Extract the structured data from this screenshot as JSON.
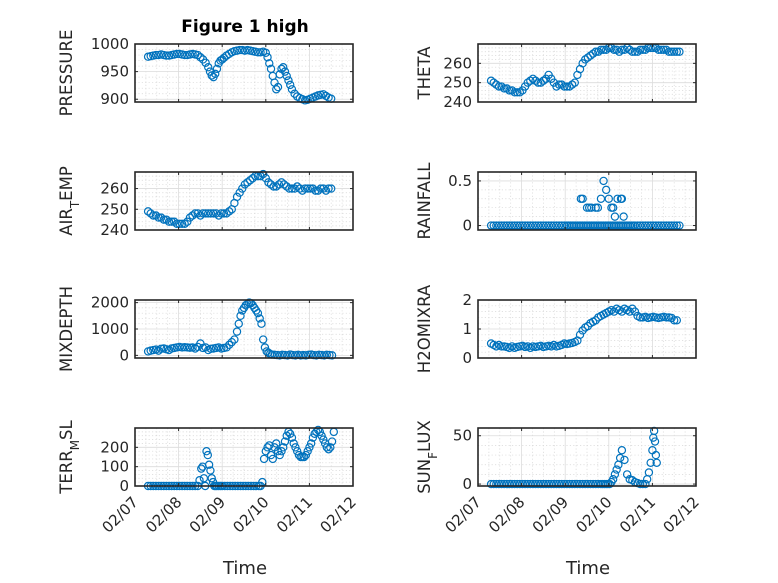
{
  "figure": {
    "title": "Figure 1 high",
    "xlabel": "Time",
    "date_ticks": [
      "02/07",
      "02/08",
      "02/09",
      "02/10",
      "02/11",
      "02/12"
    ],
    "marker_color": "#0072BD"
  },
  "chart_data": [
    {
      "type": "scatter",
      "ylabel": "PRESSURE",
      "title": "Figure 1 high",
      "xlim": [
        0,
        5
      ],
      "ylim": [
        895,
        1000
      ],
      "yticks": [
        900,
        950,
        1000
      ],
      "x": [
        0.3,
        0.36,
        0.42,
        0.48,
        0.54,
        0.6,
        0.66,
        0.72,
        0.78,
        0.84,
        0.9,
        0.96,
        1.02,
        1.08,
        1.14,
        1.2,
        1.26,
        1.32,
        1.38,
        1.44,
        1.5,
        1.56,
        1.62,
        1.68,
        1.72,
        1.76,
        1.8,
        1.84,
        1.88,
        1.92,
        1.96,
        2.0,
        2.04,
        2.1,
        2.16,
        2.22,
        2.28,
        2.34,
        2.4,
        2.46,
        2.52,
        2.58,
        2.64,
        2.7,
        2.76,
        2.82,
        2.88,
        2.94,
        3.0,
        3.04,
        3.08,
        3.12,
        3.16,
        3.2,
        3.24,
        3.28,
        3.32,
        3.36,
        3.4,
        3.44,
        3.48,
        3.52,
        3.56,
        3.6,
        3.66,
        3.72,
        3.78,
        3.84,
        3.9,
        3.96,
        4.02,
        4.08,
        4.14,
        4.2,
        4.26,
        4.32,
        4.38,
        4.44,
        4.5
      ],
      "values": [
        977,
        978,
        979,
        980,
        980,
        981,
        980,
        979,
        979,
        980,
        981,
        982,
        982,
        981,
        980,
        980,
        981,
        982,
        981,
        980,
        976,
        972,
        966,
        958,
        950,
        943,
        940,
        946,
        955,
        965,
        970,
        972,
        975,
        979,
        982,
        985,
        987,
        988,
        989,
        989,
        988,
        989,
        988,
        987,
        986,
        985,
        985,
        986,
        984,
        976,
        965,
        955,
        942,
        930,
        918,
        922,
        945,
        955,
        958,
        950,
        942,
        934,
        926,
        918,
        910,
        905,
        902,
        900,
        898,
        899,
        901,
        903,
        905,
        907,
        908,
        909,
        906,
        903,
        901
      ]
    },
    {
      "type": "scatter",
      "ylabel": "THETA",
      "xlim": [
        0,
        5
      ],
      "ylim": [
        240,
        270
      ],
      "yticks": [
        240,
        250,
        260
      ],
      "x": [
        0.3,
        0.36,
        0.42,
        0.48,
        0.54,
        0.6,
        0.66,
        0.72,
        0.78,
        0.84,
        0.9,
        0.96,
        1.02,
        1.08,
        1.14,
        1.2,
        1.26,
        1.32,
        1.38,
        1.44,
        1.5,
        1.56,
        1.62,
        1.68,
        1.74,
        1.8,
        1.86,
        1.92,
        1.98,
        2.04,
        2.1,
        2.16,
        2.22,
        2.28,
        2.34,
        2.4,
        2.46,
        2.52,
        2.58,
        2.64,
        2.7,
        2.76,
        2.82,
        2.88,
        2.94,
        3.0,
        3.06,
        3.12,
        3.18,
        3.24,
        3.3,
        3.36,
        3.42,
        3.48,
        3.54,
        3.6,
        3.66,
        3.72,
        3.78,
        3.84,
        3.9,
        3.96,
        4.02,
        4.08,
        4.14,
        4.2,
        4.26,
        4.32,
        4.38,
        4.44,
        4.5,
        4.56,
        4.62
      ],
      "values": [
        251,
        250,
        249,
        248,
        248,
        247,
        247,
        246,
        246,
        245,
        245,
        245,
        246,
        248,
        250,
        251,
        252,
        251,
        250,
        250,
        251,
        252,
        254,
        252,
        250,
        248,
        249,
        249,
        248,
        248,
        248,
        249,
        250,
        254,
        257,
        260,
        262,
        263,
        264,
        265,
        266,
        266,
        267,
        267,
        267,
        268,
        268,
        267,
        267,
        266,
        267,
        267,
        268,
        267,
        266,
        266,
        266,
        267,
        267,
        267,
        268,
        268,
        268,
        268,
        267,
        267,
        267,
        267,
        266,
        266,
        266,
        266,
        266
      ]
    },
    {
      "type": "scatter",
      "ylabel": "AIR_TEMP",
      "xlim": [
        0,
        5
      ],
      "ylim": [
        240,
        268
      ],
      "yticks": [
        240,
        250,
        260
      ],
      "x": [
        0.3,
        0.36,
        0.42,
        0.48,
        0.54,
        0.6,
        0.66,
        0.72,
        0.78,
        0.84,
        0.9,
        0.96,
        1.02,
        1.08,
        1.14,
        1.2,
        1.26,
        1.32,
        1.38,
        1.44,
        1.5,
        1.56,
        1.62,
        1.68,
        1.74,
        1.8,
        1.86,
        1.92,
        1.98,
        2.04,
        2.1,
        2.16,
        2.22,
        2.28,
        2.34,
        2.4,
        2.46,
        2.52,
        2.58,
        2.64,
        2.7,
        2.76,
        2.82,
        2.88,
        2.94,
        3.0,
        3.06,
        3.12,
        3.18,
        3.24,
        3.3,
        3.36,
        3.42,
        3.48,
        3.54,
        3.6,
        3.66,
        3.72,
        3.78,
        3.84,
        3.9,
        3.96,
        4.02,
        4.08,
        4.14,
        4.2,
        4.26,
        4.32,
        4.38,
        4.44,
        4.5
      ],
      "values": [
        249,
        248,
        247,
        247,
        246,
        246,
        245,
        245,
        244,
        244,
        244,
        243,
        243,
        243,
        243,
        244,
        246,
        247,
        248,
        248,
        247,
        248,
        248,
        248,
        248,
        248,
        248,
        247,
        248,
        248,
        248,
        249,
        250,
        253,
        256,
        258,
        260,
        262,
        263,
        264,
        265,
        266,
        266,
        266,
        267,
        265,
        263,
        262,
        261,
        261,
        262,
        263,
        262,
        261,
        260,
        260,
        260,
        261,
        260,
        259,
        260,
        260,
        260,
        260,
        259,
        259,
        260,
        260,
        259,
        260,
        260
      ]
    },
    {
      "type": "scatter",
      "ylabel": "RAINFALL",
      "xlim": [
        0,
        5
      ],
      "ylim": [
        -0.05,
        0.6
      ],
      "yticks": [
        0,
        0.5
      ],
      "x": [
        0.3,
        0.36,
        0.42,
        0.48,
        0.54,
        0.6,
        0.66,
        0.72,
        0.78,
        0.84,
        0.9,
        0.96,
        1.02,
        1.08,
        1.14,
        1.2,
        1.26,
        1.32,
        1.38,
        1.44,
        1.5,
        1.56,
        1.62,
        1.68,
        1.74,
        1.8,
        1.86,
        1.92,
        1.98,
        2.04,
        2.08,
        2.12,
        2.16,
        2.2,
        2.24,
        2.28,
        2.32,
        2.36,
        2.4,
        2.44,
        2.48,
        2.52,
        2.56,
        2.6,
        2.64,
        2.68,
        2.72,
        2.76,
        2.8,
        2.84,
        2.88,
        2.92,
        2.96,
        3.0,
        3.04,
        3.08,
        3.12,
        3.16,
        3.2,
        3.24,
        3.28,
        3.32,
        3.36,
        3.4,
        3.44,
        3.48,
        3.52,
        3.56,
        3.6,
        3.66,
        3.72,
        3.78,
        3.84,
        3.9,
        3.96,
        4.02,
        4.08,
        4.14,
        4.2,
        4.26,
        4.32,
        4.38,
        4.44,
        4.5,
        4.56,
        4.62,
        2.36,
        2.4,
        2.5,
        2.55,
        2.6,
        2.7,
        2.75,
        2.82,
        2.88,
        2.94,
        3.0,
        3.06,
        3.1,
        3.14,
        3.2,
        3.28,
        3.3,
        3.34
      ],
      "values": [
        0,
        0,
        0,
        0,
        0,
        0,
        0,
        0,
        0,
        0,
        0,
        0,
        0,
        0,
        0,
        0,
        0,
        0,
        0,
        0,
        0,
        0,
        0,
        0,
        0,
        0,
        0,
        0,
        0,
        0,
        0,
        0,
        0,
        0,
        0,
        0,
        0,
        0,
        0,
        0,
        0,
        0,
        0,
        0,
        0,
        0,
        0,
        0,
        0,
        0,
        0,
        0,
        0,
        0,
        0,
        0,
        0,
        0,
        0,
        0,
        0,
        0,
        0,
        0,
        0,
        0,
        0,
        0,
        0,
        0,
        0,
        0,
        0,
        0,
        0,
        0,
        0,
        0,
        0,
        0,
        0,
        0,
        0,
        0,
        0,
        0,
        0.3,
        0.3,
        0.2,
        0.2,
        0.2,
        0.2,
        0.2,
        0.3,
        0.5,
        0.4,
        0.3,
        0.2,
        0.2,
        0.1,
        0.3,
        0.3,
        0.3,
        0.1
      ]
    },
    {
      "type": "scatter",
      "ylabel": "MIXDEPTH",
      "xlim": [
        0,
        5
      ],
      "ylim": [
        -100,
        2100
      ],
      "yticks": [
        0,
        1000,
        2000
      ],
      "x": [
        0.3,
        0.36,
        0.42,
        0.48,
        0.54,
        0.6,
        0.66,
        0.72,
        0.78,
        0.84,
        0.9,
        0.96,
        1.02,
        1.08,
        1.14,
        1.2,
        1.26,
        1.32,
        1.38,
        1.44,
        1.5,
        1.56,
        1.62,
        1.68,
        1.74,
        1.8,
        1.86,
        1.92,
        1.98,
        2.04,
        2.1,
        2.16,
        2.22,
        2.28,
        2.34,
        2.38,
        2.42,
        2.46,
        2.5,
        2.54,
        2.58,
        2.62,
        2.66,
        2.7,
        2.74,
        2.78,
        2.82,
        2.86,
        2.9,
        2.94,
        2.98,
        3.02,
        3.06,
        3.1,
        3.14,
        3.2,
        3.26,
        3.32,
        3.38,
        3.44,
        3.5,
        3.56,
        3.62,
        3.68,
        3.74,
        3.8,
        3.86,
        3.92,
        3.98,
        4.04,
        4.1,
        4.16,
        4.22,
        4.28,
        4.34,
        4.4,
        4.46,
        4.52
      ],
      "values": [
        150,
        180,
        200,
        220,
        180,
        250,
        260,
        230,
        200,
        260,
        280,
        300,
        320,
        300,
        310,
        300,
        290,
        300,
        260,
        320,
        450,
        280,
        300,
        200,
        250,
        260,
        280,
        300,
        260,
        280,
        300,
        400,
        500,
        600,
        900,
        1200,
        1500,
        1700,
        1800,
        1900,
        1950,
        2000,
        1980,
        1900,
        1800,
        1700,
        1600,
        1400,
        1200,
        600,
        300,
        150,
        100,
        50,
        30,
        20,
        10,
        0,
        20,
        10,
        0,
        30,
        10,
        0,
        20,
        0,
        10,
        0,
        20,
        30,
        10,
        0,
        20,
        10,
        0,
        20,
        10,
        0
      ]
    },
    {
      "type": "scatter",
      "ylabel": "H2OMIXRA",
      "xlim": [
        0,
        5
      ],
      "ylim": [
        0,
        2
      ],
      "yticks": [
        0,
        1,
        2
      ],
      "x": [
        0.3,
        0.36,
        0.42,
        0.48,
        0.54,
        0.6,
        0.66,
        0.72,
        0.78,
        0.84,
        0.9,
        0.96,
        1.02,
        1.08,
        1.14,
        1.2,
        1.26,
        1.32,
        1.38,
        1.44,
        1.5,
        1.56,
        1.62,
        1.68,
        1.74,
        1.8,
        1.86,
        1.92,
        1.98,
        2.04,
        2.1,
        2.16,
        2.22,
        2.28,
        2.34,
        2.4,
        2.46,
        2.52,
        2.58,
        2.64,
        2.7,
        2.76,
        2.82,
        2.88,
        2.94,
        3.0,
        3.06,
        3.12,
        3.18,
        3.24,
        3.3,
        3.36,
        3.42,
        3.48,
        3.54,
        3.6,
        3.66,
        3.72,
        3.78,
        3.84,
        3.9,
        3.96,
        4.02,
        4.08,
        4.14,
        4.2,
        4.26,
        4.32,
        4.38,
        4.44,
        4.5,
        4.56
      ],
      "values": [
        0.5,
        0.45,
        0.4,
        0.45,
        0.4,
        0.4,
        0.38,
        0.35,
        0.4,
        0.35,
        0.38,
        0.4,
        0.42,
        0.38,
        0.4,
        0.35,
        0.4,
        0.38,
        0.4,
        0.42,
        0.38,
        0.4,
        0.42,
        0.4,
        0.45,
        0.4,
        0.42,
        0.45,
        0.5,
        0.48,
        0.5,
        0.52,
        0.55,
        0.6,
        0.8,
        0.95,
        1.05,
        1.1,
        1.2,
        1.25,
        1.3,
        1.4,
        1.45,
        1.5,
        1.55,
        1.6,
        1.65,
        1.6,
        1.7,
        1.65,
        1.6,
        1.7,
        1.65,
        1.6,
        1.7,
        1.6,
        1.45,
        1.4,
        1.4,
        1.42,
        1.38,
        1.4,
        1.42,
        1.4,
        1.38,
        1.4,
        1.42,
        1.4,
        1.4,
        1.38,
        1.3,
        1.3
      ]
    },
    {
      "type": "scatter",
      "ylabel": "TERR_MSL",
      "xlim": [
        0,
        5
      ],
      "ylim": [
        0,
        300
      ],
      "yticks": [
        0,
        100,
        200
      ],
      "x": [
        0.3,
        0.36,
        0.42,
        0.48,
        0.54,
        0.6,
        0.66,
        0.72,
        0.78,
        0.84,
        0.9,
        0.96,
        1.02,
        1.08,
        1.14,
        1.2,
        1.26,
        1.32,
        1.38,
        1.44,
        1.48,
        1.52,
        1.55,
        1.58,
        1.61,
        1.64,
        1.67,
        1.7,
        1.73,
        1.76,
        1.79,
        1.82,
        1.85,
        1.88,
        1.92,
        1.96,
        2.0,
        2.06,
        2.12,
        2.18,
        2.24,
        2.3,
        2.36,
        2.42,
        2.48,
        2.54,
        2.6,
        2.66,
        2.72,
        2.78,
        2.84,
        2.88,
        2.92,
        2.96,
        3.0,
        3.04,
        3.08,
        3.12,
        3.16,
        3.2,
        3.24,
        3.28,
        3.32,
        3.36,
        3.4,
        3.44,
        3.48,
        3.52,
        3.56,
        3.6,
        3.64,
        3.68,
        3.72,
        3.76,
        3.8,
        3.84,
        3.88,
        3.92,
        3.96,
        4.0,
        4.04,
        4.08,
        4.12,
        4.16,
        4.2,
        4.24,
        4.28,
        4.32,
        4.36,
        4.4,
        4.44,
        4.48,
        4.52,
        4.56
      ],
      "values": [
        0,
        0,
        0,
        0,
        0,
        0,
        0,
        0,
        0,
        0,
        0,
        0,
        0,
        0,
        0,
        0,
        0,
        0,
        0,
        0,
        30,
        90,
        100,
        40,
        0,
        180,
        160,
        110,
        80,
        40,
        20,
        0,
        0,
        0,
        0,
        0,
        0,
        0,
        0,
        0,
        0,
        0,
        0,
        0,
        0,
        0,
        0,
        0,
        0,
        0,
        0,
        0,
        20,
        140,
        180,
        200,
        210,
        160,
        140,
        200,
        220,
        180,
        160,
        180,
        200,
        230,
        260,
        280,
        270,
        250,
        220,
        200,
        180,
        160,
        150,
        150,
        150,
        160,
        180,
        200,
        220,
        250,
        270,
        280,
        290,
        280,
        260,
        240,
        220,
        200,
        190,
        200,
        230,
        280
      ]
    },
    {
      "type": "scatter",
      "ylabel": "SUN_FLUX",
      "xlim": [
        0,
        5
      ],
      "ylim": [
        -2,
        58
      ],
      "yticks": [
        0,
        50
      ],
      "x": [
        0.3,
        0.36,
        0.42,
        0.48,
        0.54,
        0.6,
        0.66,
        0.72,
        0.78,
        0.84,
        0.9,
        0.96,
        1.02,
        1.08,
        1.14,
        1.2,
        1.26,
        1.32,
        1.38,
        1.44,
        1.5,
        1.56,
        1.62,
        1.68,
        1.74,
        1.8,
        1.86,
        1.92,
        1.98,
        2.04,
        2.1,
        2.16,
        2.22,
        2.28,
        2.34,
        2.4,
        2.46,
        2.52,
        2.58,
        2.64,
        2.7,
        2.76,
        2.82,
        2.86,
        2.9,
        2.94,
        2.98,
        3.02,
        3.06,
        3.1,
        3.14,
        3.18,
        3.22,
        3.26,
        3.3,
        3.36,
        3.42,
        3.48,
        3.54,
        3.6,
        3.66,
        3.72,
        3.78,
        3.84,
        3.88,
        3.92,
        3.96,
        4.0,
        4.02,
        4.04,
        4.06,
        4.08,
        4.1
      ],
      "values": [
        0,
        0,
        0,
        0,
        0,
        0,
        0,
        0,
        0,
        0,
        0,
        0,
        0,
        0,
        0,
        0,
        0,
        0,
        0,
        0,
        0,
        0,
        0,
        0,
        0,
        0,
        0,
        0,
        0,
        0,
        0,
        0,
        0,
        0,
        0,
        0,
        0,
        0,
        0,
        0,
        0,
        0,
        0,
        0,
        0,
        0,
        0,
        0,
        2,
        5,
        10,
        15,
        20,
        27,
        35,
        25,
        10,
        5,
        4,
        2,
        1,
        0,
        0,
        0,
        5,
        12,
        22,
        35,
        48,
        55,
        44,
        30,
        22
      ]
    }
  ]
}
